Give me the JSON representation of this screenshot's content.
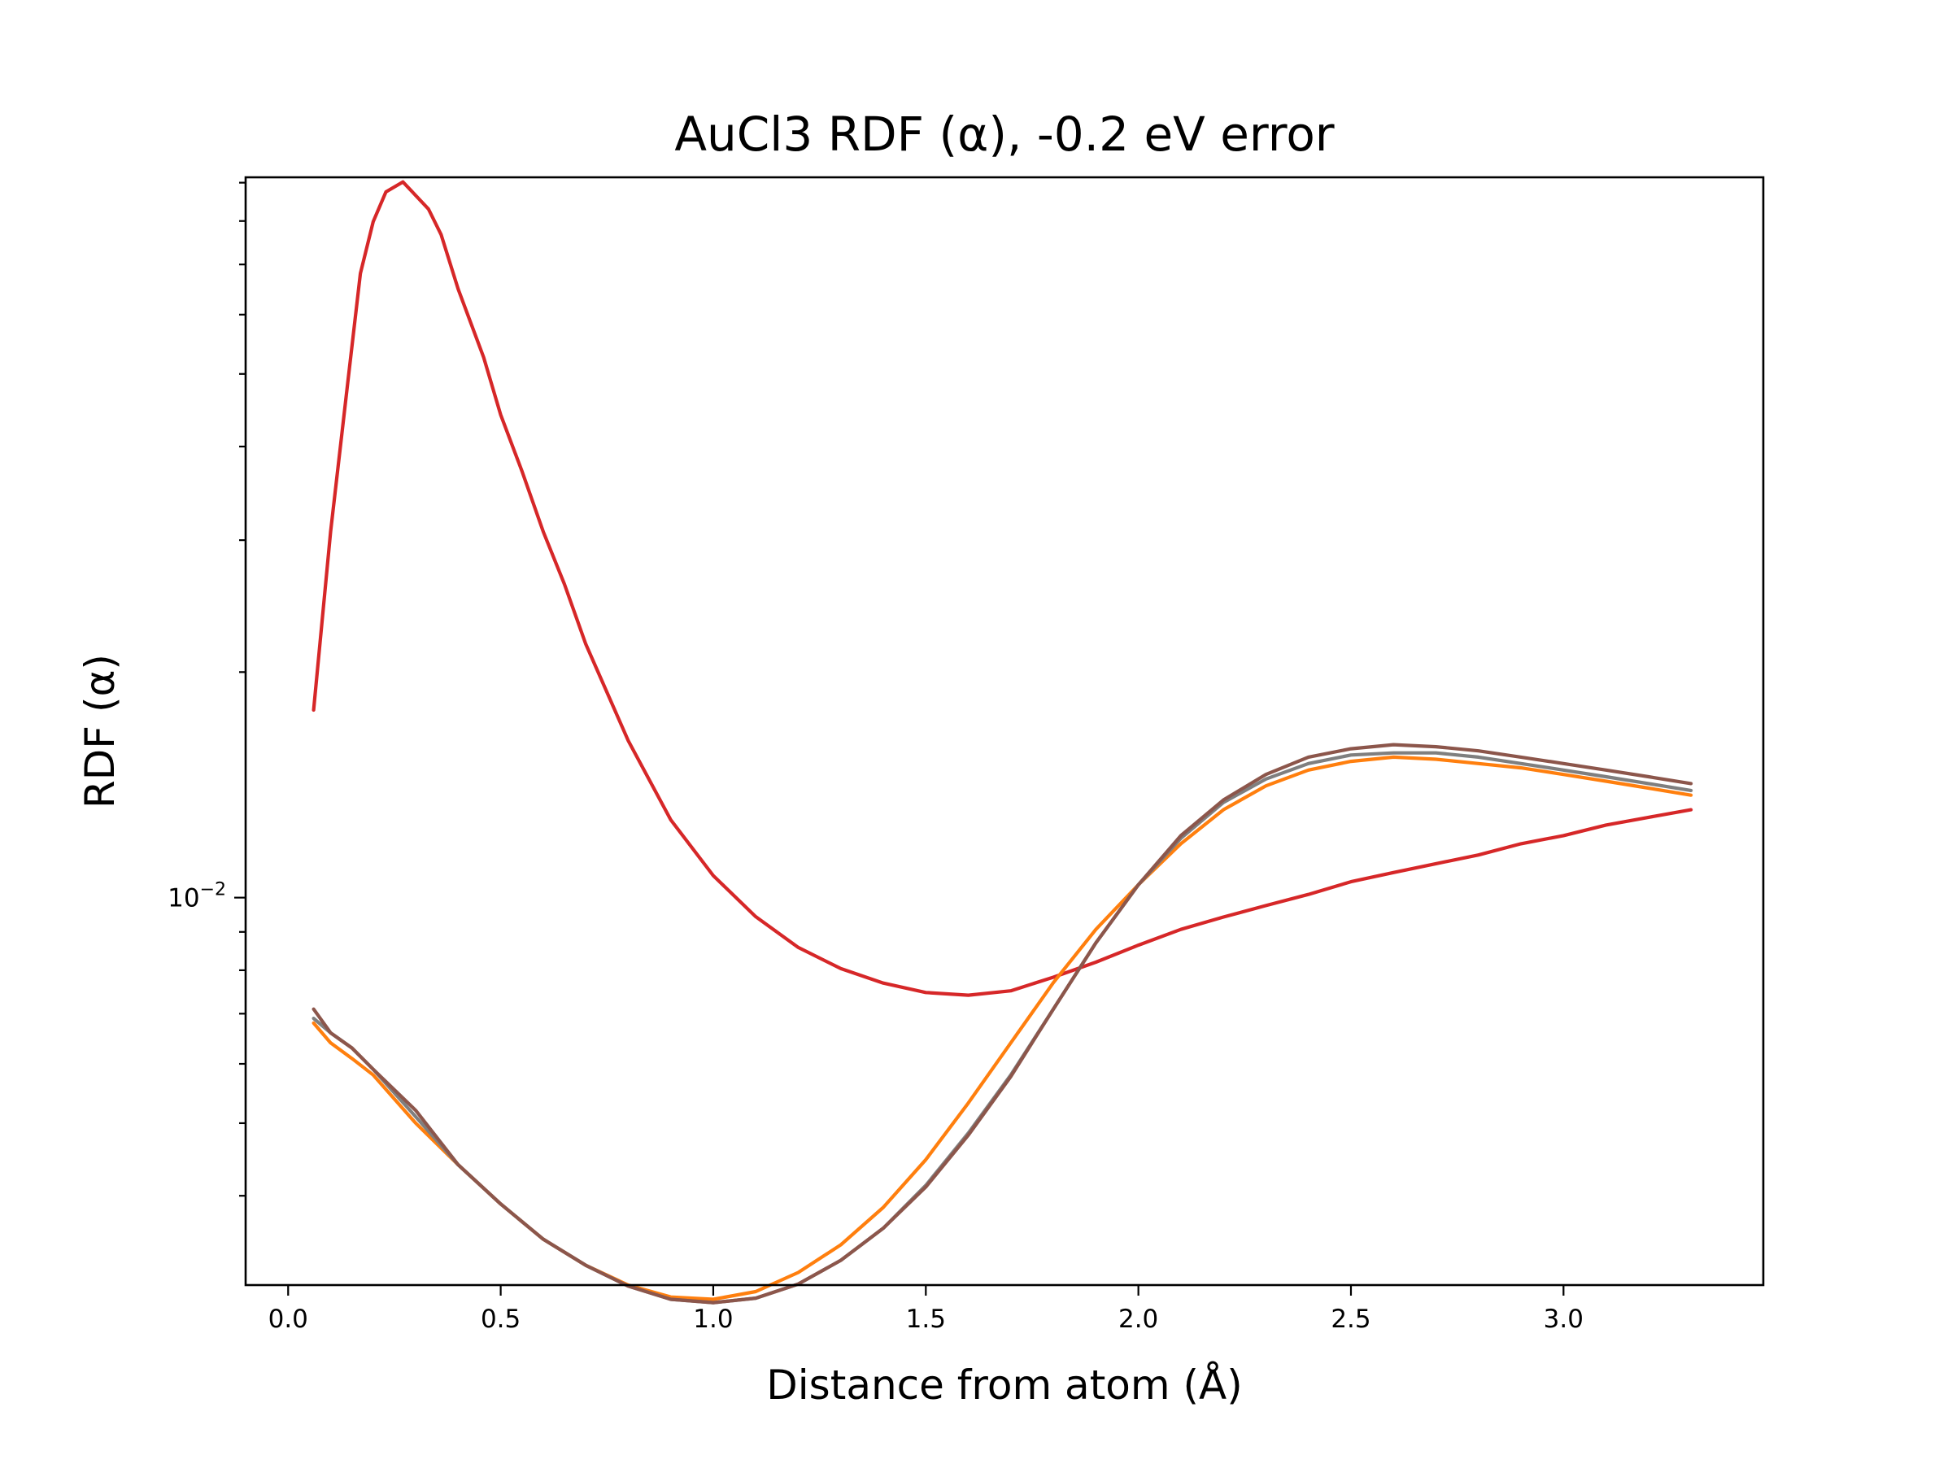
{
  "chart_data": {
    "type": "line",
    "title": "AuCl3 RDF (α), -0.2 eV error",
    "xlabel": "Distance from atom (Å)",
    "ylabel": "RDF (α)",
    "yscale": "log",
    "xlim": [
      -0.1,
      3.47
    ],
    "ylim": [
      0.00304,
      0.0915
    ],
    "x_ticks": [
      0.0,
      0.5,
      1.0,
      1.5,
      2.0,
      2.5,
      3.0
    ],
    "x_tick_labels": [
      "0.0",
      "0.5",
      "1.0",
      "1.5",
      "2.0",
      "2.5",
      "3.0"
    ],
    "y_major_ticks": [
      0.01
    ],
    "y_major_tick_base": "10",
    "y_major_tick_exponent": "−2",
    "y_minor_ticks": [
      0.004,
      0.005,
      0.006,
      0.007,
      0.008,
      0.009,
      0.02,
      0.03,
      0.04,
      0.05,
      0.06,
      0.07,
      0.08,
      0.09
    ],
    "grid": false,
    "legend": "none",
    "series": [
      {
        "color": "#d62728",
        "x": [
          0.06,
          0.1,
          0.14,
          0.17,
          0.2,
          0.23,
          0.27,
          0.33,
          0.36,
          0.4,
          0.46,
          0.5,
          0.55,
          0.6,
          0.65,
          0.7,
          0.8,
          0.9,
          1.0,
          1.1,
          1.2,
          1.3,
          1.4,
          1.5,
          1.6,
          1.7,
          1.8,
          1.9,
          2.0,
          2.1,
          2.2,
          2.3,
          2.4,
          2.5,
          2.6,
          2.7,
          2.8,
          2.9,
          3.0,
          3.1,
          3.2,
          3.3
        ],
        "values": [
          0.0178,
          0.0308,
          0.0485,
          0.0681,
          0.0798,
          0.0875,
          0.0902,
          0.083,
          0.0767,
          0.0649,
          0.0526,
          0.0441,
          0.0371,
          0.0308,
          0.0262,
          0.0218,
          0.0162,
          0.0127,
          0.0107,
          0.00943,
          0.00858,
          0.00804,
          0.00769,
          0.00747,
          0.00741,
          0.00751,
          0.00783,
          0.0082,
          0.00864,
          0.00907,
          0.00942,
          0.00976,
          0.0101,
          0.0105,
          0.0108,
          0.0111,
          0.0114,
          0.0118,
          0.0121,
          0.0125,
          0.0128,
          0.0131
        ]
      },
      {
        "color": "#ff7f0e",
        "x": [
          0.06,
          0.1,
          0.15,
          0.2,
          0.3,
          0.4,
          0.5,
          0.6,
          0.7,
          0.8,
          0.9,
          1.0,
          1.1,
          1.2,
          1.3,
          1.4,
          1.5,
          1.6,
          1.7,
          1.8,
          1.9,
          2.0,
          2.1,
          2.2,
          2.3,
          2.4,
          2.5,
          2.6,
          2.7,
          2.8,
          2.9,
          3.0,
          3.1,
          3.2,
          3.3
        ],
        "values": [
          0.0068,
          0.0064,
          0.0061,
          0.0058,
          0.005,
          0.0044,
          0.0039,
          0.0035,
          0.00323,
          0.00304,
          0.00293,
          0.00291,
          0.00298,
          0.00316,
          0.00344,
          0.00386,
          0.00447,
          0.00532,
          0.0064,
          0.0077,
          0.00907,
          0.0104,
          0.0118,
          0.0131,
          0.0141,
          0.0148,
          0.0152,
          0.0154,
          0.0153,
          0.0151,
          0.0149,
          0.0146,
          0.0143,
          0.014,
          0.0137
        ]
      },
      {
        "color": "#7f7f7f",
        "x": [
          0.06,
          0.1,
          0.15,
          0.2,
          0.3,
          0.4,
          0.5,
          0.6,
          0.7,
          0.8,
          0.9,
          1.0,
          1.1,
          1.2,
          1.3,
          1.4,
          1.5,
          1.6,
          1.7,
          1.8,
          1.9,
          2.0,
          2.1,
          2.2,
          2.3,
          2.4,
          2.5,
          2.6,
          2.7,
          2.8,
          2.9,
          3.0,
          3.1,
          3.2,
          3.3
        ],
        "values": [
          0.0069,
          0.0066,
          0.0063,
          0.0059,
          0.0051,
          0.0044,
          0.0039,
          0.0035,
          0.00323,
          0.00303,
          0.00291,
          0.00288,
          0.00292,
          0.00305,
          0.00328,
          0.00362,
          0.00413,
          0.00485,
          0.0058,
          0.0071,
          0.0087,
          0.0104,
          0.012,
          0.0134,
          0.0144,
          0.0151,
          0.0155,
          0.0156,
          0.0156,
          0.0154,
          0.0151,
          0.0148,
          0.0145,
          0.0142,
          0.0139
        ]
      },
      {
        "color": "#8c564b",
        "x": [
          0.06,
          0.1,
          0.15,
          0.2,
          0.3,
          0.4,
          0.5,
          0.6,
          0.7,
          0.8,
          0.9,
          1.0,
          1.1,
          1.2,
          1.3,
          1.4,
          1.5,
          1.6,
          1.7,
          1.8,
          1.9,
          2.0,
          2.1,
          2.2,
          2.3,
          2.4,
          2.5,
          2.6,
          2.7,
          2.8,
          2.9,
          3.0,
          3.1,
          3.2,
          3.3
        ],
        "values": [
          0.0071,
          0.0066,
          0.0063,
          0.0059,
          0.0052,
          0.0044,
          0.0039,
          0.0035,
          0.00323,
          0.00303,
          0.00291,
          0.00288,
          0.00292,
          0.00305,
          0.00328,
          0.00362,
          0.00411,
          0.00482,
          0.00577,
          0.0071,
          0.0087,
          0.0104,
          0.0121,
          0.0135,
          0.0146,
          0.0154,
          0.0158,
          0.016,
          0.0159,
          0.0157,
          0.0154,
          0.0151,
          0.0148,
          0.0145,
          0.0142
        ]
      }
    ]
  }
}
